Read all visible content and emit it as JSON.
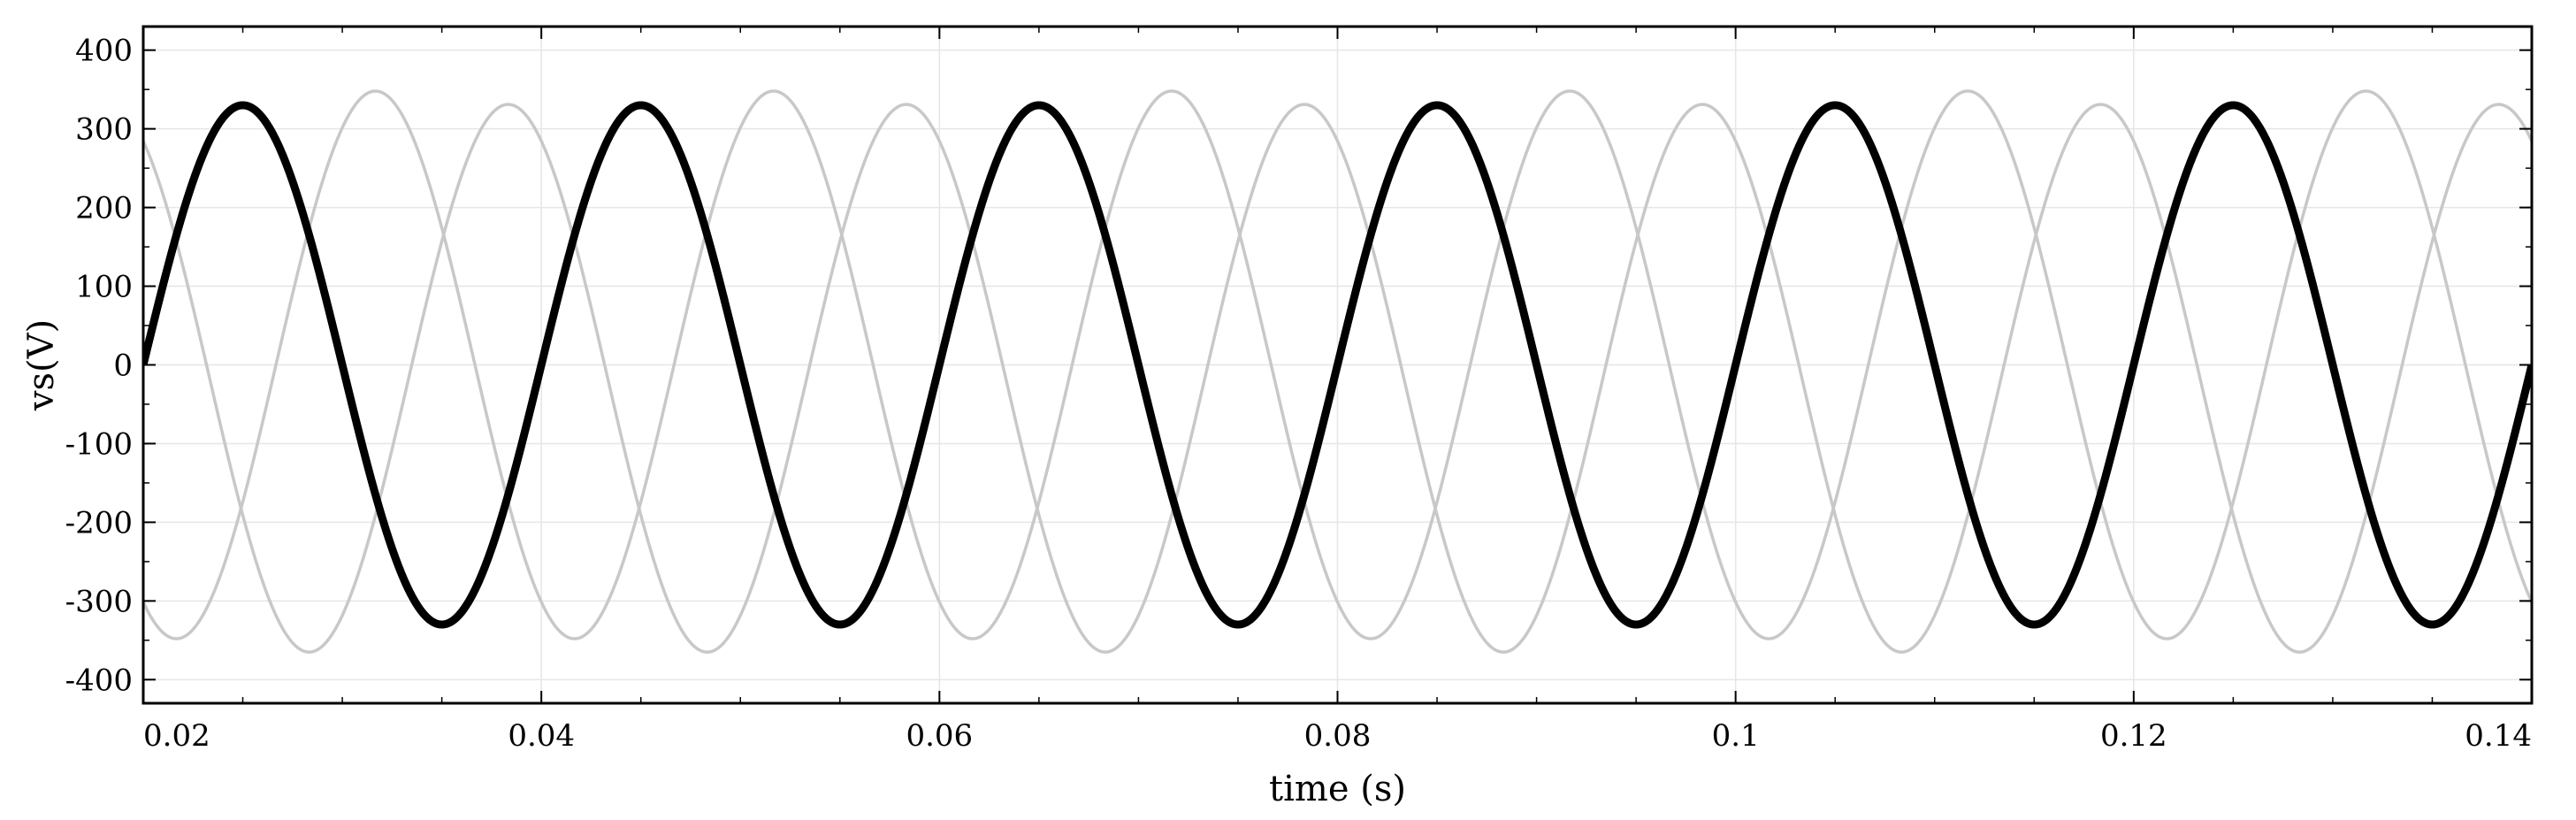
{
  "chart_data": {
    "type": "line",
    "title": "",
    "xlabel": "time (s)",
    "ylabel": "vs(V)",
    "xlim": [
      0.02,
      0.14
    ],
    "ylim": [
      -430,
      430
    ],
    "grid": true,
    "legend": "none",
    "x_ticks": [
      0.02,
      0.04,
      0.06,
      0.08,
      0.1,
      0.12,
      0.14
    ],
    "x_tick_labels": [
      "0.02",
      "0.04",
      "0.06",
      "0.08",
      "0.1",
      "0.12",
      "0.14"
    ],
    "y_ticks": [
      400,
      300,
      200,
      100,
      0,
      -100,
      -200,
      -300,
      -400
    ],
    "y_tick_labels": [
      "400",
      "300",
      "200",
      "100",
      "0",
      "-100",
      "-200",
      "-300",
      "-400"
    ],
    "series": [
      {
        "amplitude": 330,
        "frequency_hz": 50,
        "phase_deg": 0,
        "offset": 0,
        "color": "#000000",
        "weight": "bold"
      },
      {
        "amplitude": 348,
        "frequency_hz": 50,
        "phase_deg": -120,
        "offset": 0,
        "color": "#c8c8c8",
        "weight": "thin"
      },
      {
        "amplitude": 348,
        "frequency_hz": 50,
        "phase_deg": 120,
        "offset": -17,
        "color": "#c8c8c8",
        "weight": "thin"
      }
    ]
  }
}
